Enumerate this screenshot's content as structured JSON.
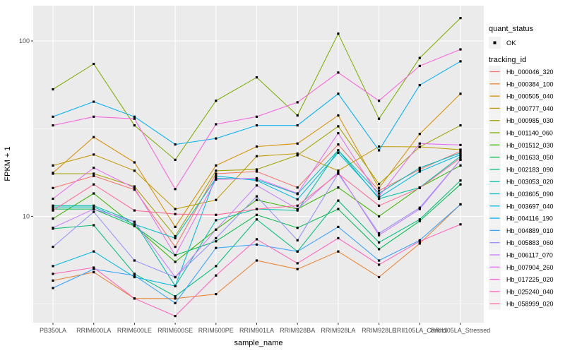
{
  "chart_data": {
    "type": "line",
    "title": "",
    "xlabel": "sample_name",
    "ylabel": "FPKM + 1",
    "y_scale": "log10",
    "y_major_ticks": [
      100,
      10
    ],
    "y_minor_ticks": [
      31.62,
      3.162
    ],
    "ylim": [
      2.5,
      160
    ],
    "grid": "on",
    "point_shape": "filled-square",
    "point_color": "#000000",
    "categories": [
      "PB350LA",
      "RRIM600LA",
      "RRIM600LE",
      "RRIM600SE",
      "RRIM600PE",
      "RRIM901LA",
      "RRIM928BA",
      "RRIM928LA",
      "RRIM928LE",
      "RRII105LA_Control",
      "RRII105LA_Stressed"
    ],
    "series": [
      {
        "name": "Hb_000046_320",
        "color": "#F8766D",
        "values": [
          14.5,
          17.0,
          14.2,
          6.7,
          17.5,
          18.0,
          14.6,
          25.7,
          14.0,
          18.5,
          23.5
        ]
      },
      {
        "name": "Hb_000384_100",
        "color": "#EA8331",
        "values": [
          4.3,
          4.8,
          3.4,
          3.4,
          3.6,
          5.6,
          5.0,
          6.3,
          4.5,
          7.0,
          11.7
        ]
      },
      {
        "name": "Hb_000505_040",
        "color": "#D89000",
        "values": [
          17.7,
          28.3,
          20.3,
          8.7,
          19.5,
          25.0,
          26.0,
          37.6,
          14.5,
          29.5,
          50.0
        ]
      },
      {
        "name": "Hb_000777_040",
        "color": "#C09B00",
        "values": [
          19.5,
          22.5,
          18.2,
          11.0,
          12.4,
          22.0,
          22.8,
          18.2,
          25.0,
          24.9,
          24.0
        ]
      },
      {
        "name": "Hb_000985_030",
        "color": "#A3A500",
        "values": [
          17.5,
          17.5,
          14.8,
          7.7,
          18.2,
          18.5,
          22.3,
          32.6,
          15.3,
          24.9,
          33.0
        ]
      },
      {
        "name": "Hb_001140_060",
        "color": "#7CAE00",
        "values": [
          53,
          74,
          33,
          21,
          45.6,
          62,
          37.6,
          110,
          36,
          80,
          135
        ]
      },
      {
        "name": "Hb_001512_030",
        "color": "#39B600",
        "values": [
          9.7,
          13.5,
          8.8,
          5.5,
          8.4,
          12.4,
          11.0,
          14.6,
          10.0,
          14.6,
          19.5
        ]
      },
      {
        "name": "Hb_001633_050",
        "color": "#00BB4E",
        "values": [
          11.0,
          11.0,
          8.8,
          6.0,
          7.2,
          10.2,
          8.6,
          11.0,
          6.5,
          9.4,
          15.2
        ]
      },
      {
        "name": "Hb_002183_090",
        "color": "#00BF7D",
        "values": [
          8.5,
          8.9,
          4.7,
          3.5,
          5.2,
          9.6,
          6.3,
          12.3,
          7.1,
          9.6,
          16.0
        ]
      },
      {
        "name": "Hb_003053_020",
        "color": "#00C1A3",
        "values": [
          11.5,
          11.5,
          9.3,
          4.0,
          9.5,
          11.0,
          10.8,
          23.8,
          12.6,
          14.6,
          22.0
        ]
      },
      {
        "name": "Hb_003605_090",
        "color": "#00BFC4",
        "values": [
          11.3,
          11.3,
          9.0,
          7.5,
          16.5,
          16.2,
          13.4,
          23.8,
          13.5,
          18.9,
          23.0
        ]
      },
      {
        "name": "Hb_003697_040",
        "color": "#00BAE0",
        "values": [
          5.2,
          6.3,
          4.5,
          4.0,
          17.0,
          16.0,
          12.5,
          23.0,
          12.8,
          18.0,
          22.5
        ]
      },
      {
        "name": "Hb_004116_190",
        "color": "#00B0F6",
        "values": [
          37,
          45,
          37,
          25.7,
          27.8,
          33,
          33,
          50,
          23.8,
          56,
          76.5
        ]
      },
      {
        "name": "Hb_004889_010",
        "color": "#35A2FF",
        "values": [
          3.9,
          5.0,
          4.6,
          3.2,
          6.6,
          6.9,
          6.3,
          8.7,
          5.6,
          7.3,
          11.7
        ]
      },
      {
        "name": "Hb_005883_060",
        "color": "#9590FF",
        "values": [
          6.7,
          10.6,
          5.6,
          4.5,
          7.5,
          13.0,
          7.3,
          17.5,
          8.0,
          11.2,
          21.0
        ]
      },
      {
        "name": "Hb_006117_070",
        "color": "#C77CFF",
        "values": [
          8.6,
          11.0,
          9.3,
          4.5,
          8.4,
          15.0,
          11.0,
          17.8,
          7.8,
          11.0,
          21.0
        ]
      },
      {
        "name": "Hb_007904_260",
        "color": "#E76BF3",
        "values": [
          12.6,
          18.9,
          14.5,
          6.0,
          16.2,
          16.5,
          13.5,
          29.8,
          13.0,
          26.0,
          25.5
        ]
      },
      {
        "name": "Hb_017225_020",
        "color": "#FA62DB",
        "values": [
          33,
          37,
          36,
          14.3,
          33.5,
          37,
          44.7,
          66,
          45.6,
          72,
          89.5
        ]
      },
      {
        "name": "Hb_025240_040",
        "color": "#FF62BC",
        "values": [
          4.7,
          5.1,
          3.4,
          2.7,
          4.6,
          7.4,
          5.4,
          7.5,
          5.3,
          7.2,
          9.0
        ]
      },
      {
        "name": "Hb_058999_020",
        "color": "#FF6A98",
        "values": [
          10.8,
          15.2,
          10.8,
          10.3,
          10.2,
          11.0,
          11.5,
          17.5,
          11.5,
          14.5,
          21.5
        ]
      }
    ],
    "legend": {
      "position": "right",
      "quant_status_title": "quant_status",
      "ok_label": "OK",
      "tracking_id_title": "tracking_id"
    }
  },
  "colors": {
    "outer_bg": "#FFFFFF",
    "panel_bg": "#EBEBEB",
    "grid": "#FFFFFF",
    "axis_text": "#4D4D4D",
    "title_text": "#000000",
    "tick_mark": "#333333",
    "legend_key_bg": "#F2F2F2"
  }
}
